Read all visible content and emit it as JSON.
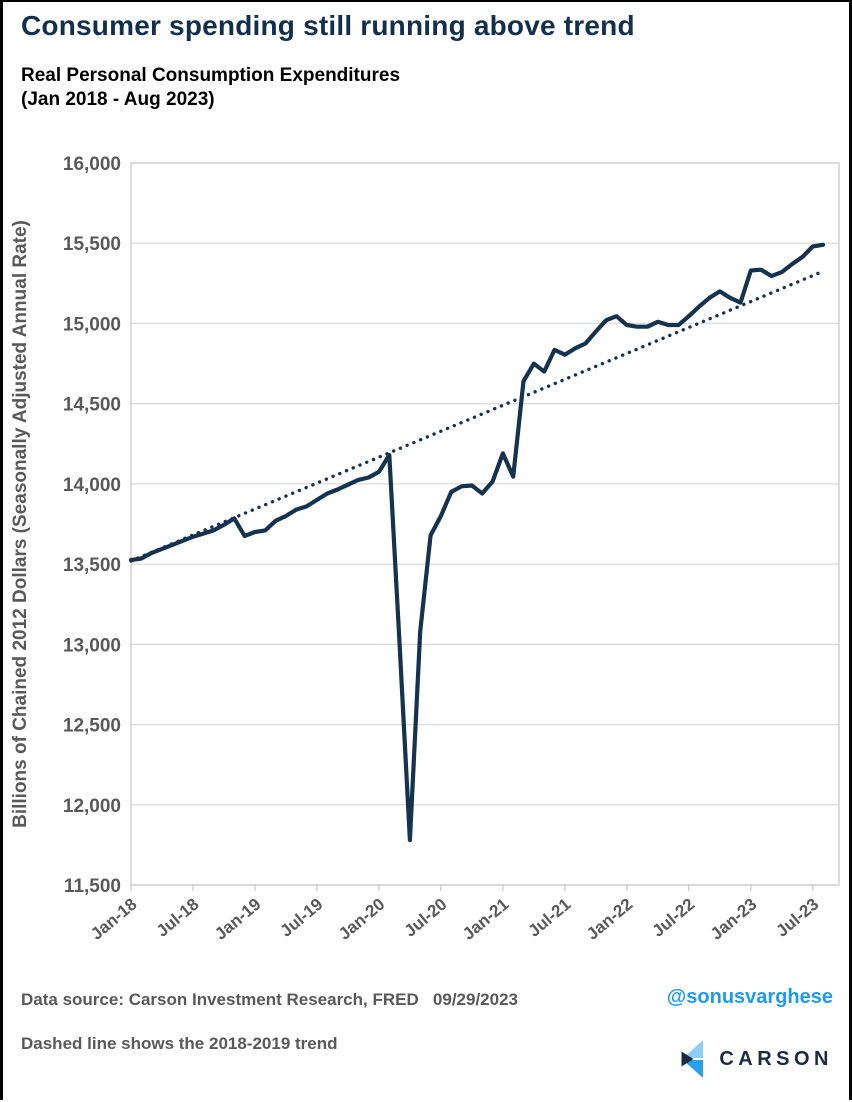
{
  "page": {
    "title": "Consumer spending still running above trend",
    "subtitle_line1": "Real Personal Consumption Expenditures",
    "subtitle_line2": "(Jan 2018 - Aug 2023)",
    "footer": {
      "source": "Data source: Carson Investment Research, FRED   09/29/2023",
      "handle": "@sonusvarghese",
      "note": "Dashed line shows the 2018-2019 trend",
      "logo_text": "CARSON"
    }
  },
  "colors": {
    "title_navy": "#12304E",
    "line_navy": "#15334F",
    "axis_text_gray": "#595959",
    "gridline_gray": "#DCDCDC",
    "frame_gray": "#C9C9C9",
    "handle_blue": "#2199F1",
    "logo_light_blue": "#8FCDF4",
    "logo_blue": "#2B9FE9",
    "logo_navy": "#1B2B45"
  },
  "chart_data": {
    "type": "line",
    "title": "Real Personal Consumption Expenditures (Jan 2018 - Aug 2023)",
    "xlabel": "",
    "ylabel": "Billions of Chained 2012 Dollars (Seasonally Adjusted Annual Rate)",
    "ylim": [
      11500,
      16000
    ],
    "grid": "horizontal",
    "legend_position": "none",
    "ytick_values": [
      16000,
      15500,
      15000,
      14500,
      14000,
      13500,
      13000,
      12500,
      12000,
      11500
    ],
    "ytick_labels": [
      "16,000",
      "15,500",
      "15,000",
      "14,500",
      "14,000",
      "13,500",
      "13,000",
      "12,500",
      "12,000",
      "11,500"
    ],
    "xtick_labels": [
      "Jan-18",
      "Jul-18",
      "Jan-19",
      "Jul-19",
      "Jan-20",
      "Jul-20",
      "Jan-21",
      "Jul-21",
      "Jan-22",
      "Jul-22",
      "Jan-23",
      "Jul-23"
    ],
    "categories": [
      "Jan-18",
      "Feb-18",
      "Mar-18",
      "Apr-18",
      "May-18",
      "Jun-18",
      "Jul-18",
      "Aug-18",
      "Sep-18",
      "Oct-18",
      "Nov-18",
      "Dec-18",
      "Jan-19",
      "Feb-19",
      "Mar-19",
      "Apr-19",
      "May-19",
      "Jun-19",
      "Jul-19",
      "Aug-19",
      "Sep-19",
      "Oct-19",
      "Nov-19",
      "Dec-19",
      "Jan-20",
      "Feb-20",
      "Mar-20",
      "Apr-20",
      "May-20",
      "Jun-20",
      "Jul-20",
      "Aug-20",
      "Sep-20",
      "Oct-20",
      "Nov-20",
      "Dec-20",
      "Jan-21",
      "Feb-21",
      "Mar-21",
      "Apr-21",
      "May-21",
      "Jun-21",
      "Jul-21",
      "Aug-21",
      "Sep-21",
      "Oct-21",
      "Nov-21",
      "Dec-21",
      "Jan-22",
      "Feb-22",
      "Mar-22",
      "Apr-22",
      "May-22",
      "Jun-22",
      "Jul-22",
      "Aug-22",
      "Sep-22",
      "Oct-22",
      "Nov-22",
      "Dec-22",
      "Jan-23",
      "Feb-23",
      "Mar-23",
      "Apr-23",
      "May-23",
      "Jun-23",
      "Jul-23",
      "Aug-23"
    ],
    "series": [
      {
        "name": "Real Personal Consumption Expenditures",
        "style": "solid",
        "values": [
          13525,
          13535,
          13570,
          13595,
          13620,
          13645,
          13670,
          13690,
          13710,
          13745,
          13785,
          13675,
          13700,
          13710,
          13770,
          13800,
          13840,
          13860,
          13900,
          13940,
          13965,
          13995,
          14025,
          14040,
          14075,
          14180,
          13000,
          11780,
          13080,
          13680,
          13800,
          13950,
          13985,
          13990,
          13940,
          14015,
          14190,
          14045,
          14640,
          14750,
          14700,
          14835,
          14805,
          14845,
          14875,
          14950,
          15020,
          15045,
          14990,
          14980,
          14980,
          15010,
          14990,
          14990,
          15045,
          15105,
          15160,
          15200,
          15160,
          15130,
          15330,
          15335,
          15295,
          15320,
          15370,
          15415,
          15480,
          15490
        ]
      },
      {
        "name": "2018-2019 trend",
        "style": "dotted",
        "trend": {
          "start_value": 13520,
          "end_value": 15325
        }
      }
    ]
  }
}
